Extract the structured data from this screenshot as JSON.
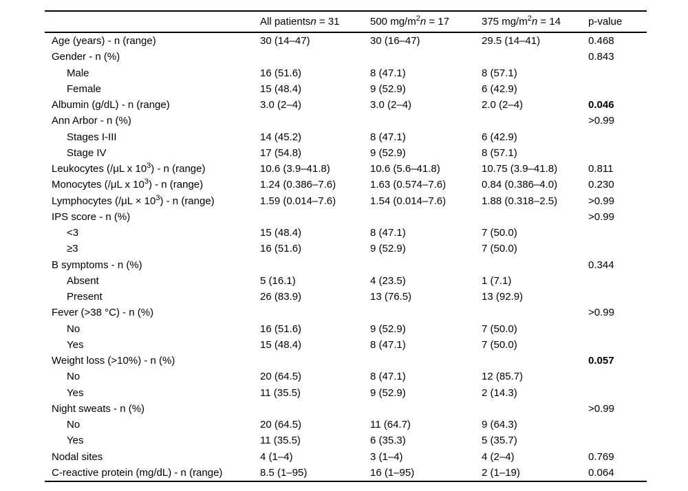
{
  "table": {
    "header": {
      "groups": [
        {
          "label": "All patients",
          "sup": "",
          "n": "n",
          "value": " = 31"
        },
        {
          "label": "500 mg/m",
          "sup": "2",
          "n": "n",
          "value": " = 17"
        },
        {
          "label": "375 mg/m",
          "sup": "2",
          "n": "n",
          "value": " = 14"
        }
      ],
      "p_value": "p-value"
    },
    "rows": [
      {
        "label": "Age (years) - n (range)",
        "indent": false,
        "all": "30 (14–47)",
        "c500": "30 (16–47)",
        "c375": "29.5 (14–41)",
        "p": "0.468",
        "p_bold": false
      },
      {
        "label": "Gender - n (%)",
        "indent": false,
        "all": "",
        "c500": "",
        "c375": "",
        "p": "0.843",
        "p_bold": false
      },
      {
        "label": "Male",
        "indent": true,
        "all": "16 (51.6)",
        "c500": "8 (47.1)",
        "c375": "8 (57.1)",
        "p": "",
        "p_bold": false
      },
      {
        "label": "Female",
        "indent": true,
        "all": "15 (48.4)",
        "c500": "9 (52.9)",
        "c375": "6 (42.9)",
        "p": "",
        "p_bold": false
      },
      {
        "label": "Albumin (g/dL) - n (range)",
        "indent": false,
        "all": "3.0 (2–4)",
        "c500": "3.0 (2–4)",
        "c375": "2.0 (2–4)",
        "p": "0.046",
        "p_bold": true
      },
      {
        "label": "Ann Arbor - n (%)",
        "indent": false,
        "all": "",
        "c500": "",
        "c375": "",
        "p": ">0.99",
        "p_bold": false
      },
      {
        "label": "Stages I-III",
        "indent": true,
        "all": "14 (45.2)",
        "c500": "8 (47.1)",
        "c375": "6 (42.9)",
        "p": "",
        "p_bold": false
      },
      {
        "label": "Stage IV",
        "indent": true,
        "all": "17 (54.8)",
        "c500": "9 (52.9)",
        "c375": "8 (57.1)",
        "p": "",
        "p_bold": false
      },
      {
        "label": "Leukocytes (/μL x 10³) - n (range)",
        "label_parts": [
          {
            "t": "Leukocytes (/μL x 10"
          },
          {
            "t": "3",
            "sup": true
          },
          {
            "t": ") - n (range)"
          }
        ],
        "indent": false,
        "all": "10.6 (3.9–41.8)",
        "c500": "10.6 (5.6–41.8)",
        "c375": "10.75 (3.9–41.8)",
        "p": "0.811",
        "p_bold": false
      },
      {
        "label": "Monocytes (/μL x 10³) - n (range)",
        "label_parts": [
          {
            "t": "Monocytes (/μL x 10"
          },
          {
            "t": "3",
            "sup": true
          },
          {
            "t": ") - n (range)"
          }
        ],
        "indent": false,
        "all": "1.24 (0.386–7.6)",
        "c500": "1.63 (0.574–7.6)",
        "c375": "0.84 (0.386–4.0)",
        "p": "0.230",
        "p_bold": false
      },
      {
        "label": "Lymphocytes (/μL × 10³) - n (range)",
        "label_parts": [
          {
            "t": "Lymphocytes (/μL × 10"
          },
          {
            "t": "3",
            "sup": true
          },
          {
            "t": ") - n (range)"
          }
        ],
        "indent": false,
        "all": "1.59 (0.014–7.6)",
        "c500": "1.54 (0.014–7.6)",
        "c375": "1.88 (0.318–2.5)",
        "p": ">0.99",
        "p_bold": false
      },
      {
        "label": "IPS score - n (%)",
        "indent": false,
        "all": "",
        "c500": "",
        "c375": "",
        "p": ">0.99",
        "p_bold": false
      },
      {
        "label": "<3",
        "indent": true,
        "all": "15 (48.4)",
        "c500": "8 (47.1)",
        "c375": "7 (50.0)",
        "p": "",
        "p_bold": false
      },
      {
        "label": "≥3",
        "indent": true,
        "all": "16 (51.6)",
        "c500": "9 (52.9)",
        "c375": "7 (50.0)",
        "p": "",
        "p_bold": false
      },
      {
        "label": "B symptoms - n (%)",
        "indent": false,
        "all": "",
        "c500": "",
        "c375": "",
        "p": "0.344",
        "p_bold": false
      },
      {
        "label": "Absent",
        "indent": true,
        "all": "5 (16.1)",
        "c500": "4 (23.5)",
        "c375": "1 (7.1)",
        "p": "",
        "p_bold": false
      },
      {
        "label": "Present",
        "indent": true,
        "all": "26 (83.9)",
        "c500": "13 (76.5)",
        "c375": "13 (92.9)",
        "p": "",
        "p_bold": false
      },
      {
        "label": "Fever (>38 °C) - n (%)",
        "indent": false,
        "all": "",
        "c500": "",
        "c375": "",
        "p": ">0.99",
        "p_bold": false
      },
      {
        "label": "No",
        "indent": true,
        "all": "16 (51.6)",
        "c500": "9 (52.9)",
        "c375": "7 (50.0)",
        "p": "",
        "p_bold": false
      },
      {
        "label": "Yes",
        "indent": true,
        "all": "15 (48.4)",
        "c500": "8 (47.1)",
        "c375": "7 (50.0)",
        "p": "",
        "p_bold": false
      },
      {
        "label": "Weight loss (>10%) - n (%)",
        "indent": false,
        "all": "",
        "c500": "",
        "c375": "",
        "p": "0.057",
        "p_bold": true
      },
      {
        "label": "No",
        "indent": true,
        "all": "20 (64.5)",
        "c500": "8 (47.1)",
        "c375": "12 (85.7)",
        "p": "",
        "p_bold": false
      },
      {
        "label": "Yes",
        "indent": true,
        "all": "11 (35.5)",
        "c500": "9 (52.9)",
        "c375": "2 (14.3)",
        "p": "",
        "p_bold": false
      },
      {
        "label": "Night sweats - n (%)",
        "indent": false,
        "all": "",
        "c500": "",
        "c375": "",
        "p": ">0.99",
        "p_bold": false
      },
      {
        "label": "No",
        "indent": true,
        "all": "20 (64.5)",
        "c500": "11 (64.7)",
        "c375": "9 (64.3)",
        "p": "",
        "p_bold": false
      },
      {
        "label": "Yes",
        "indent": true,
        "all": "11 (35.5)",
        "c500": "6 (35.3)",
        "c375": "5 (35.7)",
        "p": "",
        "p_bold": false
      },
      {
        "label": "Nodal sites",
        "indent": false,
        "all": "4 (1–4)",
        "c500": "3 (1–4)",
        "c375": "4 (2–4)",
        "p": "0.769",
        "p_bold": false
      },
      {
        "label": "C-reactive protein (mg/dL) - n (range)",
        "indent": false,
        "all": "8.5 (1–95)",
        "c500": "16 (1–95)",
        "c375": "2 (1–19)",
        "p": "0.064",
        "p_bold": false
      }
    ]
  }
}
